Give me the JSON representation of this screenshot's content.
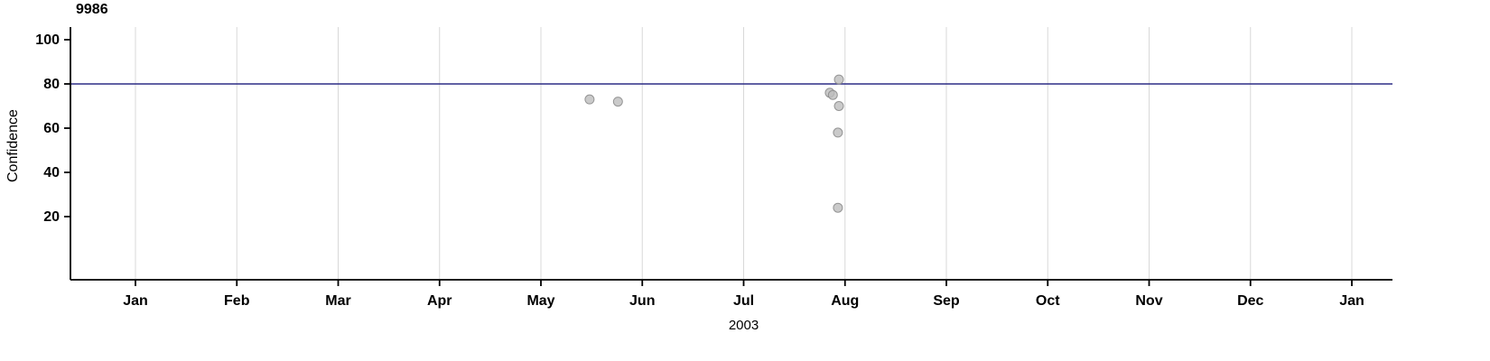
{
  "chart_data": {
    "type": "scatter",
    "title": "9986",
    "xlabel": "2003",
    "ylabel": "Confidence",
    "x_tick_labels": [
      "Jan",
      "Feb",
      "Mar",
      "Apr",
      "May",
      "Jun",
      "Jul",
      "Aug",
      "Sep",
      "Oct",
      "Nov",
      "Dec",
      "Jan"
    ],
    "x_range_months": [
      0,
      12
    ],
    "ylim": [
      0,
      108
    ],
    "y_ticks": [
      20,
      40,
      60,
      80,
      100
    ],
    "grid": "vertical-only",
    "legend": "none",
    "reference_line": {
      "y": 80,
      "color": "#2d2d86"
    },
    "points": [
      {
        "x_month": 4.48,
        "y": 73
      },
      {
        "x_month": 4.76,
        "y": 72
      },
      {
        "x_month": 6.85,
        "y": 76
      },
      {
        "x_month": 6.88,
        "y": 75
      },
      {
        "x_month": 6.94,
        "y": 82
      },
      {
        "x_month": 6.94,
        "y": 70
      },
      {
        "x_month": 6.93,
        "y": 58
      },
      {
        "x_month": 6.93,
        "y": 24
      }
    ],
    "point_style": {
      "fill": "#bdbdbd",
      "stroke": "#8c8c8c",
      "opacity": 0.8,
      "radius": 5
    },
    "colors": {
      "grid": "#d8d8d8",
      "axis": "#000000",
      "background": "#ffffff"
    }
  }
}
